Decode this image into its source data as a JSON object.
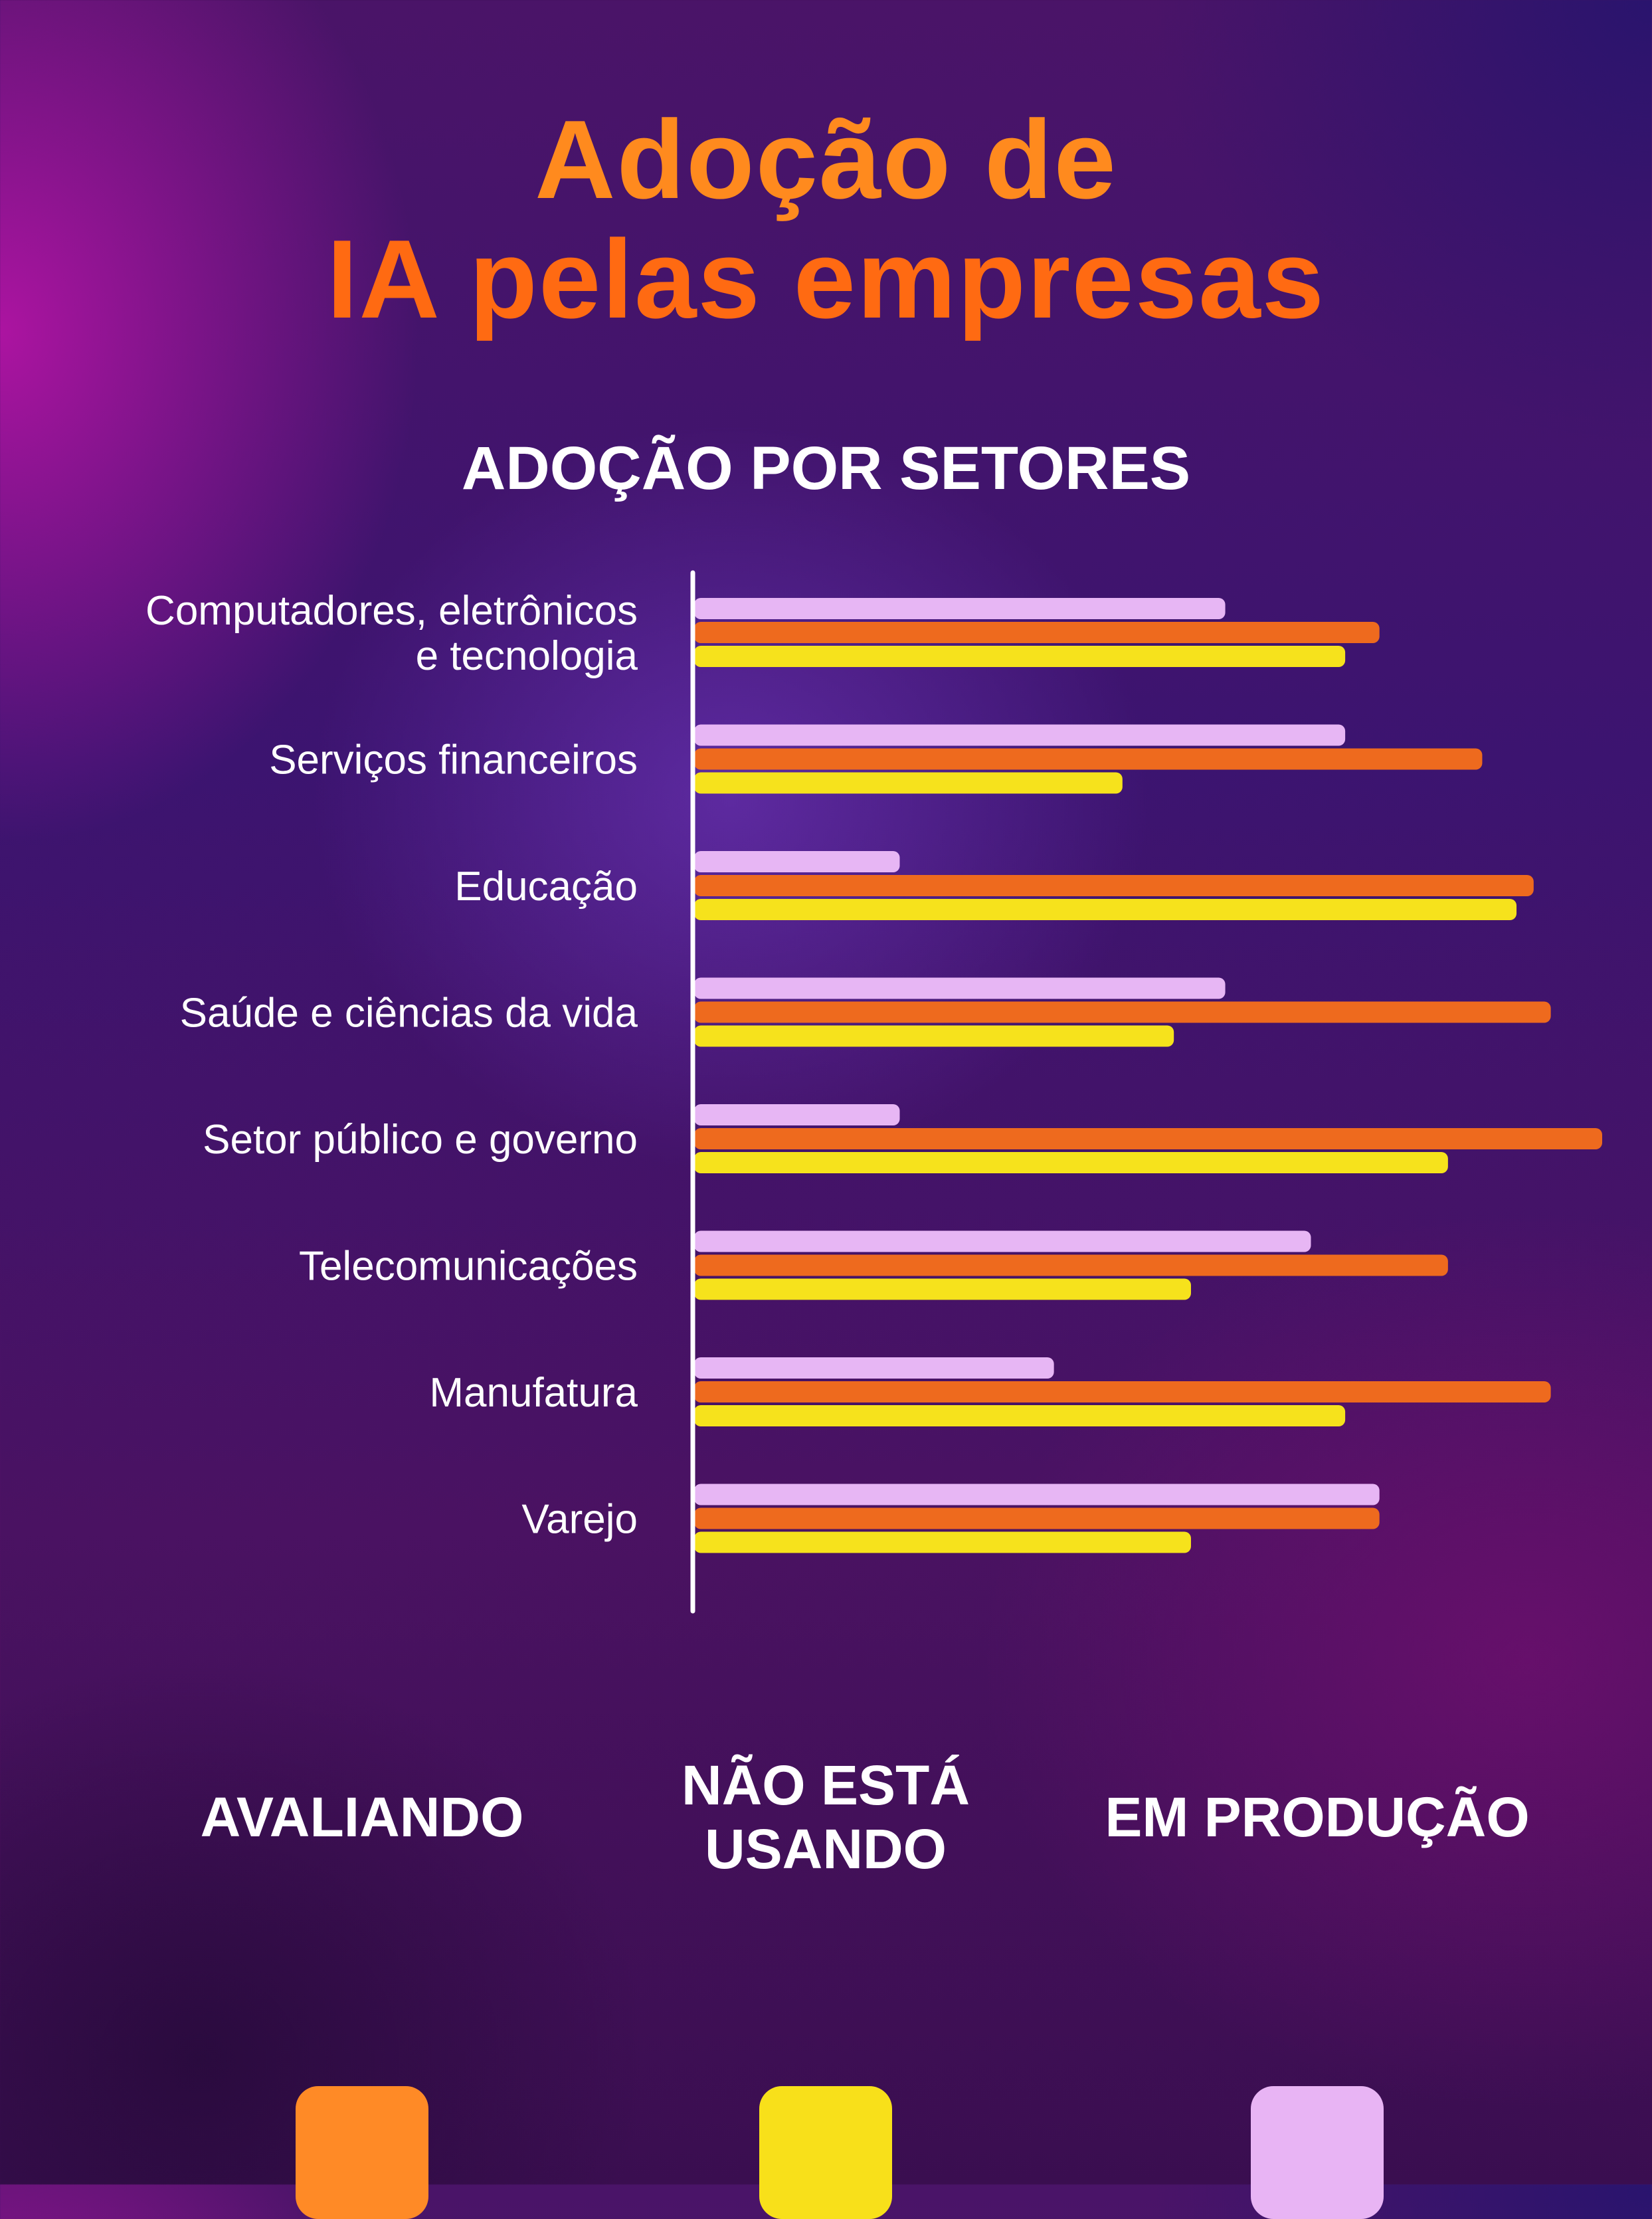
{
  "title_line1": "Adoção de",
  "title_line2": "IA pelas empresas",
  "subtitle": "ADOÇÃO POR SETORES",
  "colors": {
    "avaliando": "#ee6a1e",
    "nao_usando": "#f6e21c",
    "producao": "#e7b6f4"
  },
  "legend": [
    {
      "label_lines": [
        "AVALIANDO"
      ],
      "color": "#ff8a26"
    },
    {
      "label_lines": [
        "NÃO ESTÁ",
        "USANDO"
      ],
      "color": "#f8e01a"
    },
    {
      "label_lines": [
        "EM PRODUÇÃO"
      ],
      "color": "#e8b4f4"
    }
  ],
  "chart_data": {
    "type": "bar",
    "orientation": "horizontal",
    "title": "ADOÇÃO POR SETORES",
    "categories": [
      [
        "Computadores, eletrônicos",
        "e tecnologia"
      ],
      [
        "Serviços financeiros"
      ],
      [
        "Educação"
      ],
      [
        "Saúde e ciências da vida"
      ],
      [
        "Setor público e governo"
      ],
      [
        "Telecomunicações"
      ],
      [
        "Manufatura"
      ],
      [
        "Varejo"
      ]
    ],
    "series": [
      {
        "name": "EM PRODUÇÃO",
        "values": [
          31,
          38,
          12,
          31,
          12,
          36,
          21,
          40
        ]
      },
      {
        "name": "AVALIANDO",
        "values": [
          40,
          46,
          49,
          50,
          53,
          44,
          50,
          40
        ]
      },
      {
        "name": "NÃO ESTÁ USANDO",
        "values": [
          38,
          25,
          48,
          28,
          44,
          29,
          38,
          29
        ]
      }
    ],
    "xlim": [
      0,
      53
    ],
    "grid": false,
    "axis_ticks": false,
    "legend_position": "bottom"
  }
}
